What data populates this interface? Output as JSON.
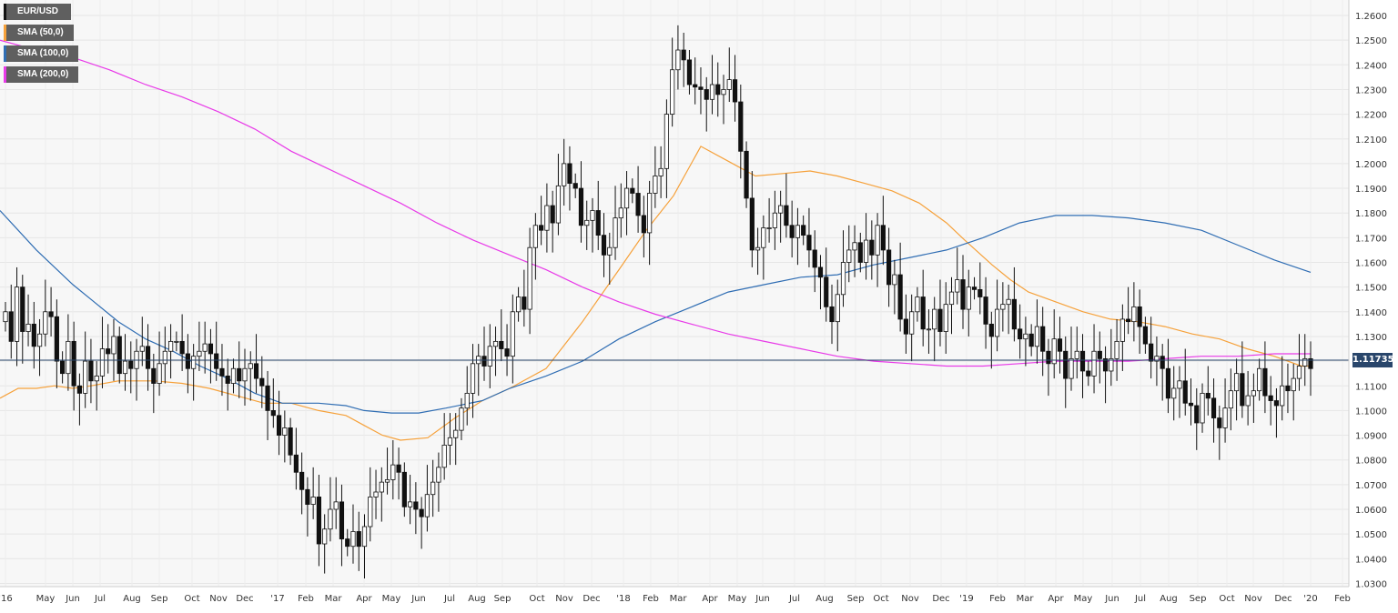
{
  "legend": [
    {
      "label": "EUR/USD",
      "color": "#111111"
    },
    {
      "label": "SMA (50,0)",
      "color": "#f6a13a"
    },
    {
      "label": "SMA (100,0)",
      "color": "#2f6db3"
    },
    {
      "label": "SMA (200,0)",
      "color": "#e83ae8"
    }
  ],
  "price_tag": "1.11735",
  "chart_data": {
    "type": "candlestick",
    "title": "EUR/USD",
    "timeframe": "weekly",
    "ylim": [
      1.025,
      1.265
    ],
    "y_ticks": [
      "1.0300",
      "1.0400",
      "1.0500",
      "1.0600",
      "1.0700",
      "1.0800",
      "1.0900",
      "1.1000",
      "1.1100",
      "1.1200",
      "1.1300",
      "1.1400",
      "1.1500",
      "1.1600",
      "1.1700",
      "1.1800",
      "1.1900",
      "1.2000",
      "1.2100",
      "1.2200",
      "1.2300",
      "1.2400",
      "1.2500",
      "1.2600"
    ],
    "x_ticks": [
      "'16",
      "May",
      "Jun",
      "Jul",
      "Aug",
      "Sep",
      "Oct",
      "Nov",
      "Dec",
      "'17",
      "Feb",
      "Mar",
      "Apr",
      "May",
      "Jun",
      "Jul",
      "Aug",
      "Sep",
      "Oct",
      "Nov",
      "Dec",
      "'18",
      "Feb",
      "Mar",
      "Apr",
      "May",
      "Jun",
      "Jul",
      "Aug",
      "Sep",
      "Oct",
      "Nov",
      "Dec",
      "'19",
      "Feb",
      "Mar",
      "Apr",
      "May",
      "Jun",
      "Jul",
      "Aug",
      "Sep",
      "Oct",
      "Nov",
      "Dec",
      "'20",
      "Feb"
    ],
    "current_price": 1.11735,
    "closes": [
      1.14,
      1.128,
      1.15,
      1.132,
      1.135,
      1.126,
      1.131,
      1.14,
      1.138,
      1.12,
      1.115,
      1.128,
      1.11,
      1.107,
      1.12,
      1.112,
      1.114,
      1.125,
      1.123,
      1.13,
      1.115,
      1.12,
      1.117,
      1.124,
      1.126,
      1.117,
      1.111,
      1.119,
      1.124,
      1.128,
      1.128,
      1.123,
      1.117,
      1.122,
      1.124,
      1.127,
      1.123,
      1.117,
      1.114,
      1.111,
      1.117,
      1.112,
      1.117,
      1.119,
      1.113,
      1.11,
      1.1,
      1.098,
      1.09,
      1.093,
      1.082,
      1.075,
      1.068,
      1.062,
      1.065,
      1.046,
      1.052,
      1.06,
      1.063,
      1.048,
      1.045,
      1.051,
      1.045,
      1.053,
      1.065,
      1.067,
      1.071,
      1.072,
      1.078,
      1.075,
      1.061,
      1.063,
      1.06,
      1.057,
      1.066,
      1.071,
      1.077,
      1.086,
      1.089,
      1.092,
      1.101,
      1.107,
      1.119,
      1.122,
      1.118,
      1.126,
      1.128,
      1.125,
      1.122,
      1.14,
      1.146,
      1.141,
      1.166,
      1.175,
      1.173,
      1.183,
      1.176,
      1.191,
      1.2,
      1.192,
      1.19,
      1.175,
      1.177,
      1.181,
      1.171,
      1.163,
      1.166,
      1.178,
      1.182,
      1.19,
      1.188,
      1.179,
      1.172,
      1.188,
      1.195,
      1.198,
      1.22,
      1.238,
      1.246,
      1.242,
      1.232,
      1.231,
      1.23,
      1.226,
      1.232,
      1.228,
      1.23,
      1.234,
      1.225,
      1.205,
      1.186,
      1.165,
      1.166,
      1.174,
      1.174,
      1.18,
      1.183,
      1.175,
      1.17,
      1.175,
      1.171,
      1.165,
      1.158,
      1.154,
      1.142,
      1.136,
      1.147,
      1.16,
      1.165,
      1.168,
      1.16,
      1.169,
      1.163,
      1.175,
      1.165,
      1.151,
      1.155,
      1.137,
      1.131,
      1.14,
      1.146,
      1.133,
      1.133,
      1.141,
      1.132,
      1.143,
      1.148,
      1.153,
      1.141,
      1.15,
      1.149,
      1.146,
      1.135,
      1.13,
      1.141,
      1.143,
      1.145,
      1.133,
      1.129,
      1.131,
      1.126,
      1.134,
      1.124,
      1.119,
      1.129,
      1.124,
      1.113,
      1.121,
      1.124,
      1.116,
      1.114,
      1.124,
      1.121,
      1.116,
      1.121,
      1.128,
      1.137,
      1.136,
      1.142,
      1.134,
      1.127,
      1.12,
      1.122,
      1.117,
      1.105,
      1.109,
      1.112,
      1.103,
      1.102,
      1.095,
      1.107,
      1.105,
      1.097,
      1.093,
      1.101,
      1.108,
      1.115,
      1.102,
      1.106,
      1.108,
      1.117,
      1.106,
      1.104,
      1.102,
      1.11,
      1.108,
      1.113,
      1.118,
      1.121,
      1.117
    ],
    "series": [
      {
        "name": "SMA (50,0)",
        "color": "#f6a13a"
      },
      {
        "name": "SMA (100,0)",
        "color": "#2f6db3"
      },
      {
        "name": "SMA (200,0)",
        "color": "#e83ae8"
      }
    ],
    "sma_paths": [
      [
        [
          0,
          1.105
        ],
        [
          20,
          1.109
        ],
        [
          40,
          1.109
        ],
        [
          60,
          1.11
        ],
        [
          80,
          1.109
        ],
        [
          100,
          1.11
        ],
        [
          130,
          1.112
        ],
        [
          170,
          1.112
        ],
        [
          200,
          1.111
        ],
        [
          230,
          1.109
        ],
        [
          260,
          1.106
        ],
        [
          290,
          1.103
        ],
        [
          320,
          1.103
        ],
        [
          350,
          1.1
        ],
        [
          380,
          1.098
        ],
        [
          400,
          1.094
        ],
        [
          420,
          1.09
        ],
        [
          440,
          1.088
        ],
        [
          470,
          1.089
        ],
        [
          500,
          1.097
        ],
        [
          530,
          1.104
        ],
        [
          560,
          1.109
        ],
        [
          600,
          1.117
        ],
        [
          640,
          1.136
        ],
        [
          680,
          1.157
        ],
        [
          710,
          1.173
        ],
        [
          740,
          1.187
        ],
        [
          770,
          1.207
        ],
        [
          800,
          1.201
        ],
        [
          830,
          1.195
        ],
        [
          860,
          1.196
        ],
        [
          890,
          1.197
        ],
        [
          920,
          1.195
        ],
        [
          950,
          1.192
        ],
        [
          980,
          1.189
        ],
        [
          1010,
          1.184
        ],
        [
          1040,
          1.176
        ],
        [
          1060,
          1.169
        ],
        [
          1090,
          1.159
        ],
        [
          1110,
          1.153
        ],
        [
          1130,
          1.148
        ],
        [
          1160,
          1.144
        ],
        [
          1190,
          1.14
        ],
        [
          1220,
          1.137
        ],
        [
          1250,
          1.136
        ],
        [
          1280,
          1.134
        ],
        [
          1310,
          1.131
        ],
        [
          1340,
          1.129
        ],
        [
          1370,
          1.125
        ],
        [
          1400,
          1.122
        ],
        [
          1430,
          1.118
        ],
        [
          1440,
          1.118
        ]
      ],
      [
        [
          0,
          1.181
        ],
        [
          20,
          1.173
        ],
        [
          40,
          1.165
        ],
        [
          60,
          1.158
        ],
        [
          80,
          1.151
        ],
        [
          100,
          1.145
        ],
        [
          130,
          1.136
        ],
        [
          160,
          1.129
        ],
        [
          190,
          1.124
        ],
        [
          220,
          1.118
        ],
        [
          250,
          1.113
        ],
        [
          280,
          1.107
        ],
        [
          310,
          1.103
        ],
        [
          350,
          1.103
        ],
        [
          380,
          1.102
        ],
        [
          400,
          1.1
        ],
        [
          430,
          1.099
        ],
        [
          460,
          1.099
        ],
        [
          490,
          1.101
        ],
        [
          530,
          1.104
        ],
        [
          560,
          1.109
        ],
        [
          600,
          1.114
        ],
        [
          640,
          1.12
        ],
        [
          680,
          1.129
        ],
        [
          720,
          1.136
        ],
        [
          760,
          1.142
        ],
        [
          800,
          1.148
        ],
        [
          840,
          1.151
        ],
        [
          880,
          1.154
        ],
        [
          920,
          1.155
        ],
        [
          960,
          1.159
        ],
        [
          1000,
          1.162
        ],
        [
          1040,
          1.165
        ],
        [
          1080,
          1.17
        ],
        [
          1120,
          1.176
        ],
        [
          1160,
          1.179
        ],
        [
          1200,
          1.179
        ],
        [
          1240,
          1.178
        ],
        [
          1280,
          1.176
        ],
        [
          1320,
          1.173
        ],
        [
          1360,
          1.167
        ],
        [
          1400,
          1.161
        ],
        [
          1440,
          1.156
        ]
      ],
      [
        [
          0,
          1.25
        ],
        [
          40,
          1.246
        ],
        [
          80,
          1.243
        ],
        [
          120,
          1.238
        ],
        [
          160,
          1.232
        ],
        [
          200,
          1.227
        ],
        [
          240,
          1.221
        ],
        [
          280,
          1.214
        ],
        [
          320,
          1.205
        ],
        [
          360,
          1.198
        ],
        [
          400,
          1.191
        ],
        [
          440,
          1.184
        ],
        [
          480,
          1.176
        ],
        [
          520,
          1.169
        ],
        [
          560,
          1.163
        ],
        [
          600,
          1.157
        ],
        [
          640,
          1.15
        ],
        [
          680,
          1.144
        ],
        [
          720,
          1.139
        ],
        [
          760,
          1.135
        ],
        [
          800,
          1.131
        ],
        [
          840,
          1.128
        ],
        [
          880,
          1.125
        ],
        [
          920,
          1.122
        ],
        [
          960,
          1.12
        ],
        [
          1000,
          1.119
        ],
        [
          1040,
          1.118
        ],
        [
          1080,
          1.118
        ],
        [
          1120,
          1.119
        ],
        [
          1160,
          1.12
        ],
        [
          1200,
          1.12
        ],
        [
          1240,
          1.12
        ],
        [
          1280,
          1.121
        ],
        [
          1320,
          1.122
        ],
        [
          1360,
          1.122
        ],
        [
          1400,
          1.123
        ],
        [
          1440,
          1.123
        ]
      ]
    ]
  }
}
